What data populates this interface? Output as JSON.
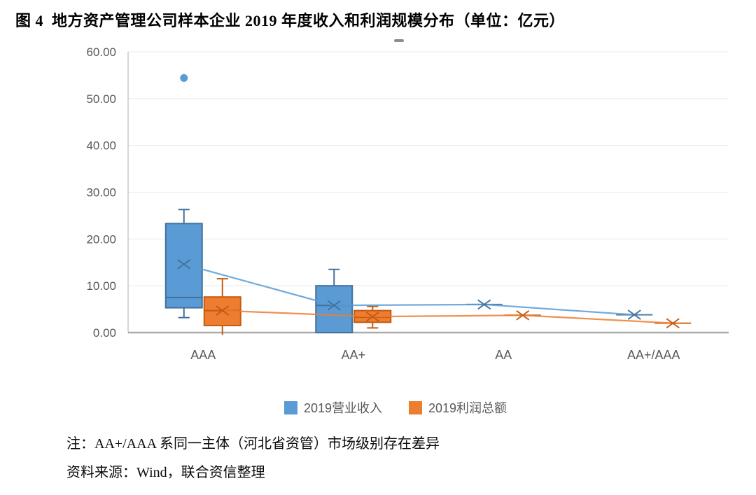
{
  "figure": {
    "title": "图 4  地方资产管理公司样本企业 2019 年度收入和利润规模分布（单位：亿元）",
    "notes": [
      "注：AA+/AAA 系同一主体（河北省资管）市场级别存在差异",
      "资料来源：Wind，联合资信整理"
    ]
  },
  "chart_data": {
    "type": "boxplot",
    "title": "地方资产管理公司样本企业2019年度收入和利润规模分布",
    "unit": "亿元",
    "categories": [
      "AAA",
      "AA+",
      "AA",
      "AA+/AAA"
    ],
    "ylim": [
      0,
      60
    ],
    "ytick_values": [
      0,
      10,
      20,
      30,
      40,
      50,
      60
    ],
    "yticks": [
      "0.00",
      "10.00",
      "20.00",
      "30.00",
      "40.00",
      "50.00",
      "60.00"
    ],
    "grid": true,
    "legend_position": "bottom",
    "mean_line": true,
    "axis_color": "#c8c8c8",
    "grid_color": "#e9e9e9",
    "label_color": "#595959",
    "series": [
      {
        "name": "2019营业收入",
        "fill": "#5B9BD5",
        "stroke": "#41719C",
        "boxes": [
          {
            "category": "AAA",
            "min": 3.2,
            "q1": 5.3,
            "median": 7.5,
            "q3": 23.3,
            "max": 26.3,
            "mean": 14.6,
            "outliers": [
              54.4
            ]
          },
          {
            "category": "AA+",
            "min": 0.0,
            "q1": 0.0,
            "median": 5.8,
            "q3": 10.0,
            "max": 13.5,
            "mean": 5.8,
            "outliers": []
          },
          {
            "category": "AA",
            "min": 6.0,
            "q1": 6.0,
            "median": 6.0,
            "q3": 6.0,
            "max": 6.0,
            "mean": 6.0,
            "outliers": []
          },
          {
            "category": "AA+/AAA",
            "min": 3.8,
            "q1": 3.8,
            "median": 3.8,
            "q3": 3.8,
            "max": 3.8,
            "mean": 3.8,
            "outliers": []
          }
        ]
      },
      {
        "name": "2019利润总额",
        "fill": "#ED7D31",
        "stroke": "#C55A11",
        "boxes": [
          {
            "category": "AAA",
            "min": -0.5,
            "q1": 1.5,
            "median": 4.7,
            "q3": 7.6,
            "max": 11.5,
            "mean": 4.7,
            "outliers": [],
            "min_cap": false
          },
          {
            "category": "AA+",
            "min": 1.0,
            "q1": 2.2,
            "median": 3.3,
            "q3": 4.7,
            "max": 5.6,
            "mean": 3.4,
            "outliers": []
          },
          {
            "category": "AA",
            "min": 3.7,
            "q1": 3.7,
            "median": 3.7,
            "q3": 3.7,
            "max": 3.7,
            "mean": 3.7,
            "outliers": []
          },
          {
            "category": "AA+/AAA",
            "min": 2.0,
            "q1": 2.0,
            "median": 2.0,
            "q3": 2.0,
            "max": 2.0,
            "mean": 2.0,
            "outliers": []
          }
        ]
      }
    ]
  }
}
